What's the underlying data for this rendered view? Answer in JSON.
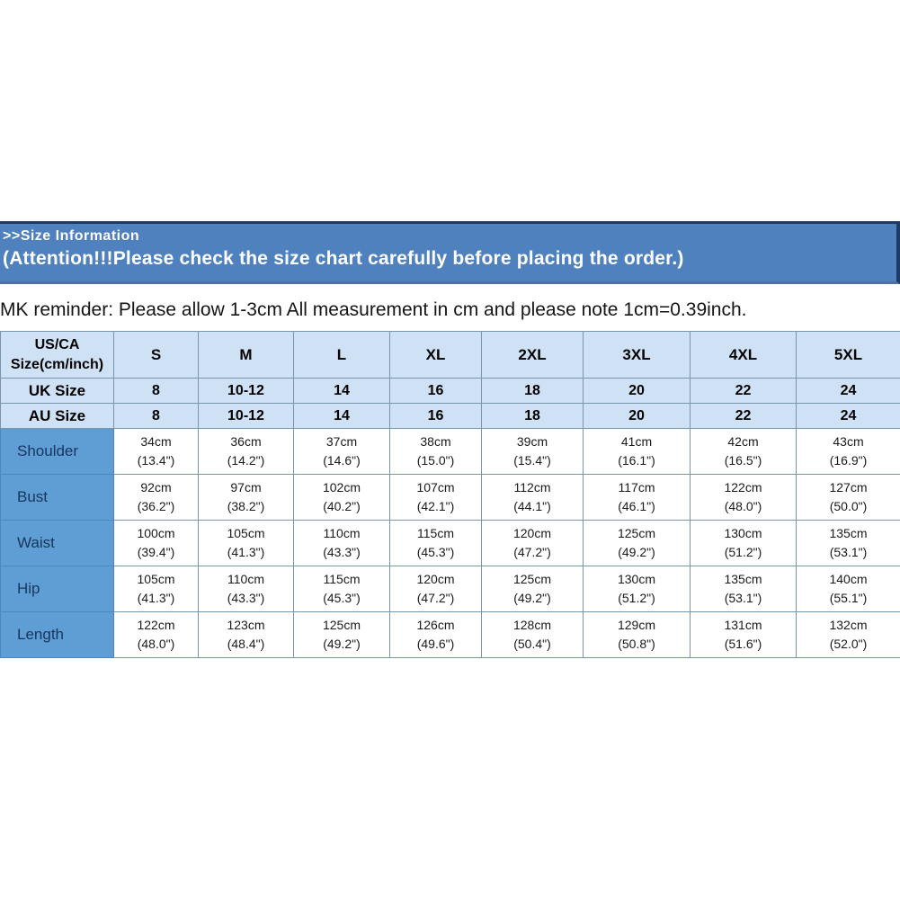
{
  "banner": {
    "title": ">>Size Information",
    "attention": "(Attention!!!Please check the size chart carefully before placing the order.)"
  },
  "reminder": "MK reminder: Please allow 1-3cm All measurement in cm and please note 1cm=0.39inch.",
  "colors": {
    "banner_bg": "#4e81bd",
    "banner_border_dark": "#1e3a66",
    "header_row_bg": "#cfe1f4",
    "label_cell_bg": "#5f9dd5",
    "label_cell_text": "#17365d",
    "grid_line": "#7796ab"
  },
  "chart_data": {
    "type": "table",
    "columns": [
      "US/CA\nSize(cm/inch)",
      "S",
      "M",
      "L",
      "XL",
      "2XL",
      "3XL",
      "4XL",
      "5XL"
    ],
    "size_rows": [
      {
        "label": "UK Size",
        "values": [
          "8",
          "10-12",
          "14",
          "16",
          "18",
          "20",
          "22",
          "24"
        ]
      },
      {
        "label": "AU Size",
        "values": [
          "8",
          "10-12",
          "14",
          "16",
          "18",
          "20",
          "22",
          "24"
        ]
      }
    ],
    "measurement_rows": [
      {
        "label": "Shoulder",
        "values": [
          {
            "cm": "34cm",
            "inch": "(13.4\")"
          },
          {
            "cm": "36cm",
            "inch": "(14.2\")"
          },
          {
            "cm": "37cm",
            "inch": "(14.6\")"
          },
          {
            "cm": "38cm",
            "inch": "(15.0\")"
          },
          {
            "cm": "39cm",
            "inch": "(15.4\")"
          },
          {
            "cm": "41cm",
            "inch": "(16.1\")"
          },
          {
            "cm": "42cm",
            "inch": "(16.5\")"
          },
          {
            "cm": "43cm",
            "inch": "(16.9\")"
          }
        ]
      },
      {
        "label": "Bust",
        "values": [
          {
            "cm": "92cm",
            "inch": "(36.2\")"
          },
          {
            "cm": "97cm",
            "inch": "(38.2\")"
          },
          {
            "cm": "102cm",
            "inch": "(40.2\")"
          },
          {
            "cm": "107cm",
            "inch": "(42.1\")"
          },
          {
            "cm": "112cm",
            "inch": "(44.1\")"
          },
          {
            "cm": "117cm",
            "inch": "(46.1\")"
          },
          {
            "cm": "122cm",
            "inch": "(48.0\")"
          },
          {
            "cm": "127cm",
            "inch": "(50.0\")"
          }
        ]
      },
      {
        "label": "Waist",
        "values": [
          {
            "cm": "100cm",
            "inch": "(39.4\")"
          },
          {
            "cm": "105cm",
            "inch": "(41.3\")"
          },
          {
            "cm": "110cm",
            "inch": "(43.3\")"
          },
          {
            "cm": "115cm",
            "inch": "(45.3\")"
          },
          {
            "cm": "120cm",
            "inch": "(47.2\")"
          },
          {
            "cm": "125cm",
            "inch": "(49.2\")"
          },
          {
            "cm": "130cm",
            "inch": "(51.2\")"
          },
          {
            "cm": "135cm",
            "inch": "(53.1\")"
          }
        ]
      },
      {
        "label": "Hip",
        "values": [
          {
            "cm": "105cm",
            "inch": "(41.3\")"
          },
          {
            "cm": "110cm",
            "inch": "(43.3\")"
          },
          {
            "cm": "115cm",
            "inch": "(45.3\")"
          },
          {
            "cm": "120cm",
            "inch": "(47.2\")"
          },
          {
            "cm": "125cm",
            "inch": "(49.2\")"
          },
          {
            "cm": "130cm",
            "inch": "(51.2\")"
          },
          {
            "cm": "135cm",
            "inch": "(53.1\")"
          },
          {
            "cm": "140cm",
            "inch": "(55.1\")"
          }
        ]
      },
      {
        "label": "Length",
        "values": [
          {
            "cm": "122cm",
            "inch": "(48.0\")"
          },
          {
            "cm": "123cm",
            "inch": "(48.4\")"
          },
          {
            "cm": "125cm",
            "inch": "(49.2\")"
          },
          {
            "cm": "126cm",
            "inch": "(49.6\")"
          },
          {
            "cm": "128cm",
            "inch": "(50.4\")"
          },
          {
            "cm": "129cm",
            "inch": "(50.8\")"
          },
          {
            "cm": "131cm",
            "inch": "(51.6\")"
          },
          {
            "cm": "132cm",
            "inch": "(52.0\")"
          }
        ]
      }
    ]
  }
}
